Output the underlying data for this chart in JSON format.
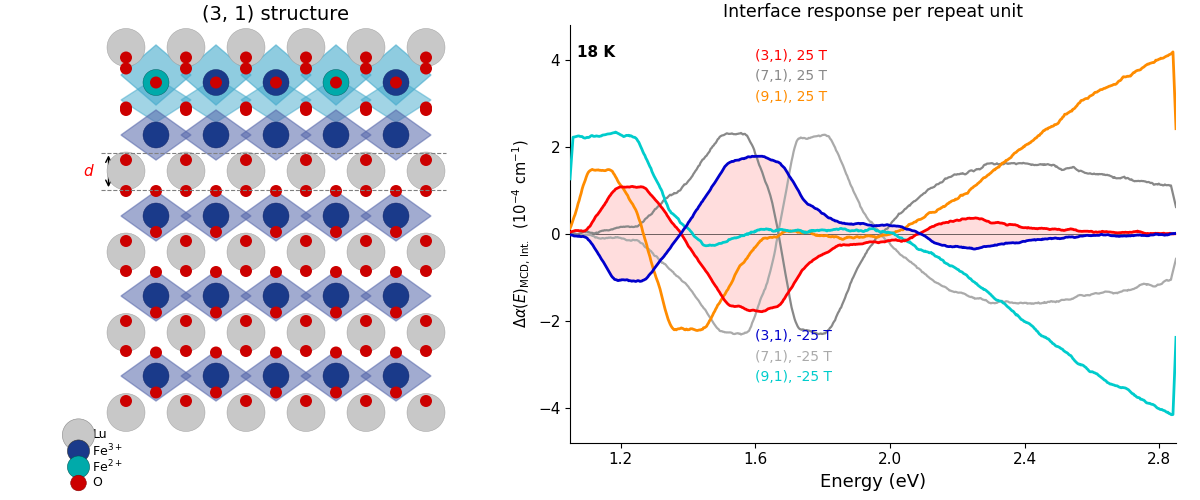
{
  "title_left": "(3, 1) structure",
  "title_right": "Interface response per repeat unit",
  "xlabel_right": "Energy (eV)",
  "annotation_temp": "18 K",
  "xlim": [
    1.05,
    2.85
  ],
  "ylim": [
    -4.8,
    4.8
  ],
  "yticks": [
    -4,
    -2,
    0,
    2,
    4
  ],
  "xticks": [
    1.2,
    1.6,
    2.0,
    2.4,
    2.8
  ],
  "lu_color": "#c8c8c8",
  "fe3_color": "#1a3a8a",
  "fe2_color": "#00aaaa",
  "o_color": "#cc0000",
  "oct_fe3_color": "#5566aa",
  "oct_fe2_color": "#44aacc",
  "color_31_pos": "#ff0000",
  "color_71_pos": "#888888",
  "color_91_pos": "#ff8c00",
  "color_31_neg": "#0000cc",
  "color_71_neg": "#aaaaaa",
  "color_91_neg": "#00cccc",
  "shade_color": "#ffcccc"
}
